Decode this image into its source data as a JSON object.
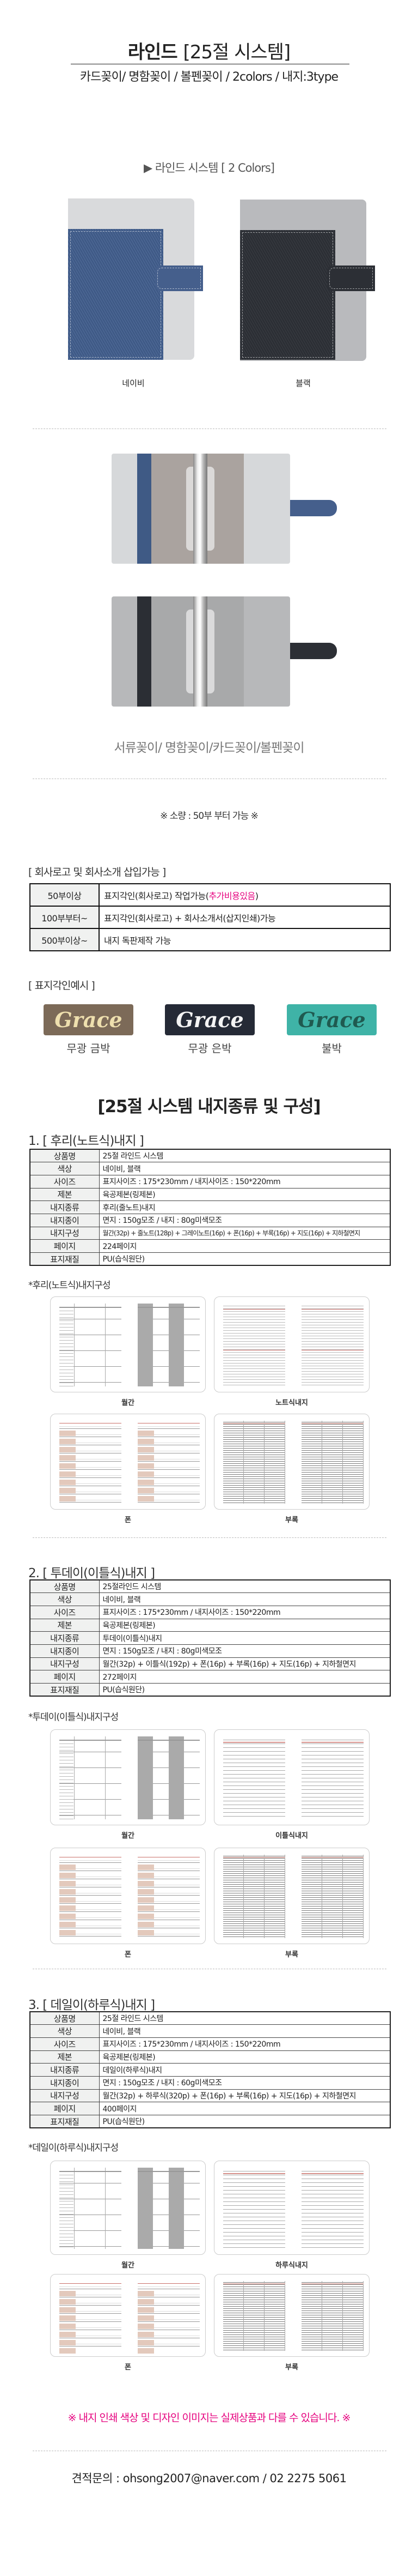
{
  "header": {
    "title": "라인드",
    "title_bracket": "[25절 시스템]",
    "subtitle": "카드꽂이/ 명함꽂이 / 볼펜꽂이 / 2colors /  내지:3type"
  },
  "colors_section": {
    "heading": "▶ 라인드 시스템 [ 2 Colors]",
    "items": [
      {
        "label": "네이비",
        "color": "#3f5a85"
      },
      {
        "label": "블랙",
        "color": "#2b2e34"
      }
    ]
  },
  "inside": {
    "caption": "서류꽂이/ 명함꽂이/카드꽂이/볼펜꽂이"
  },
  "moq": "※ 소량 : 50부 부터 가능 ※",
  "logo_section": {
    "heading": "[ 회사로고 및 회사소개 삽입가능 ]",
    "rows": [
      {
        "qty": "50부이상",
        "desc": "표지각인(회사로고) 작업가능(",
        "highlight": "추가비용있음",
        "desc_end": ")"
      },
      {
        "qty": "100부부터~",
        "desc": "표지각인(회사로고) + 회사소개서(삽지인쇄)가능",
        "highlight": "",
        "desc_end": ""
      },
      {
        "qty": "500부이상~",
        "desc": "내지 독판제작 가능",
        "highlight": "",
        "desc_end": ""
      }
    ],
    "highlight_color": "#e6007e"
  },
  "stamp_section": {
    "heading": "[ 표지각인예시 ]",
    "examples": [
      {
        "text": "Grace",
        "label": "무광 금박",
        "bg": "#7c6a58",
        "fg": "#eedfae"
      },
      {
        "text": "Grace",
        "label": "무광 은박",
        "bg": "#252a36",
        "fg": "#f4f4f4"
      },
      {
        "text": "Grace",
        "label": "불박",
        "bg": "#3fb3a7",
        "fg": "#1f5a50"
      }
    ]
  },
  "spec_title": "[25절 시스템 내지종류 및 구성]",
  "sections": [
    {
      "heading": "1. [ 후리(노트식)내지 ]",
      "sub": "*후리(노트식)내지구성",
      "rows": [
        [
          "상품명",
          "25절 라인드 시스템"
        ],
        [
          "색상",
          "네이비, 블랙"
        ],
        [
          "사이즈",
          "표지사이즈 : 175*230mm  / 내지사이즈 : 150*220mm"
        ],
        [
          "제본",
          "육공제본(링제본)"
        ],
        [
          "내지종류",
          "후리(줄노트)내지"
        ],
        [
          "내지종이",
          "면지 : 150g모조 / 내지 : 80g미색모조"
        ],
        [
          "내지구성",
          "월간(32p) + 줄노트(128p) + 그레이노트(16p) + 폰(16p) + 부록(16p) + 지도(16p) + 지하철면지"
        ],
        [
          "페이지",
          "224페이지"
        ],
        [
          "표지재질",
          "PU(습식원단)"
        ]
      ],
      "cards": [
        {
          "type": "monthly",
          "label": "월간"
        },
        {
          "type": "lined",
          "label": "노트식내지"
        },
        {
          "type": "phone",
          "label": "폰"
        },
        {
          "type": "appendix",
          "label": "부록"
        }
      ]
    },
    {
      "heading": "2. [ 투데이(이틀식)내지 ]",
      "sub": "*투데이(이틀식)내지구성",
      "rows": [
        [
          "상품명",
          "25절라인드 시스템"
        ],
        [
          "색상",
          "네이비, 블랙"
        ],
        [
          "사이즈",
          "표지사이즈 : 175*230mm  / 내지사이즈 : 150*220mm"
        ],
        [
          "제본",
          "육공제본(링제본)"
        ],
        [
          "내지종류",
          "투데이(이틀식)내지"
        ],
        [
          "내지종이",
          "면지 : 150g모조 / 내지 : 80g미색모조"
        ],
        [
          "내지구성",
          "월간(32p) + 이틀식(192p) + 폰(16p) + 부록(16p) + 지도(16p) + 지하철면지"
        ],
        [
          "페이지",
          "272페이지"
        ],
        [
          "표지재질",
          "PU(습식원단)"
        ]
      ],
      "cards": [
        {
          "type": "monthly",
          "label": "월간"
        },
        {
          "type": "twoday",
          "label": "이틀식내지"
        },
        {
          "type": "phone",
          "label": "폰"
        },
        {
          "type": "appendix",
          "label": "부록"
        }
      ]
    },
    {
      "heading": "3. [ 데일이(하루식)내지 ]",
      "sub": "*데일이(하루식)내지구성",
      "rows": [
        [
          "상품명",
          "25절 라인드 시스템"
        ],
        [
          "색상",
          "네이비, 블랙"
        ],
        [
          "사이즈",
          "표지사이즈 : 175*230mm  / 내지사이즈 : 150*220mm"
        ],
        [
          "제본",
          "육공제본(링제본)"
        ],
        [
          "내지종류",
          "데일이(하루식)내지"
        ],
        [
          "내지종이",
          "면지 : 150g모조 / 내지 : 60g미색모조"
        ],
        [
          "내지구성",
          "월간(32p) + 하루식(320p) + 폰(16p) + 부록(16p) + 지도(16p) + 지하철면지"
        ],
        [
          "페이지",
          "400페이지"
        ],
        [
          "표지재질",
          "PU(습식원단)"
        ]
      ],
      "cards": [
        {
          "type": "monthly",
          "label": "월간"
        },
        {
          "type": "daily",
          "label": "하루식내지"
        },
        {
          "type": "phone",
          "label": "폰"
        },
        {
          "type": "appendix",
          "label": "부록"
        }
      ]
    }
  ],
  "notice": "※ 내지 인쇄 색상 및 디자인 이미지는 실제상품과 다를 수 있습니다. ※",
  "notice_color": "#e6007e",
  "contact": "견적문의 : ohsong2007@naver.com / 02 2275 5061"
}
